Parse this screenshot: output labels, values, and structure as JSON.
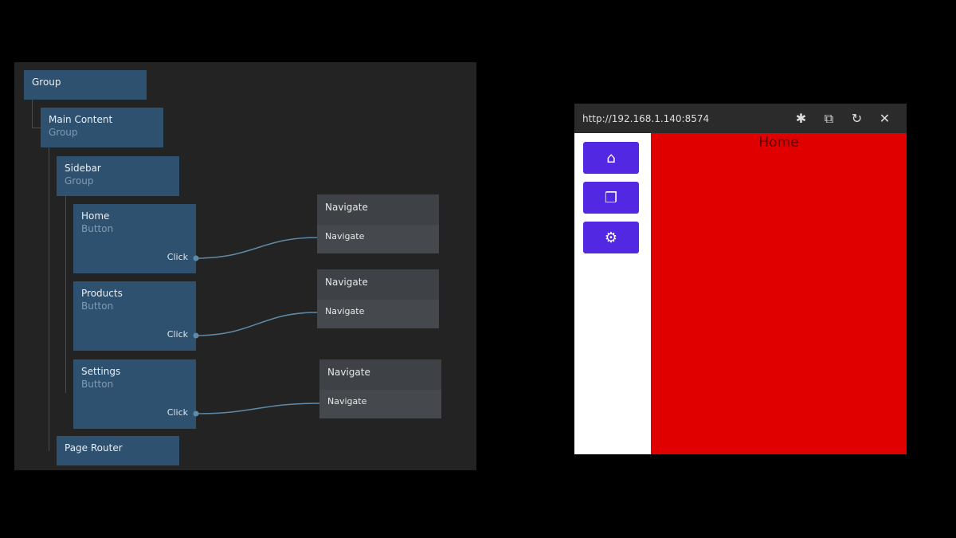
{
  "graph": {
    "nodes": [
      {
        "title": "Group",
        "subtitle": ""
      },
      {
        "title": "Main Content",
        "subtitle": "Group"
      },
      {
        "title": "Sidebar",
        "subtitle": "Group"
      },
      {
        "title": "Home",
        "subtitle": "Button",
        "port": "Click"
      },
      {
        "title": "Products",
        "subtitle": "Button",
        "port": "Click"
      },
      {
        "title": "Settings",
        "subtitle": "Button",
        "port": "Click"
      },
      {
        "title": "Page Router",
        "subtitle": ""
      }
    ],
    "navigate_nodes": [
      {
        "title": "Navigate",
        "port": "Navigate"
      },
      {
        "title": "Navigate",
        "port": "Navigate"
      },
      {
        "title": "Navigate",
        "port": "Navigate"
      }
    ]
  },
  "preview": {
    "url": "http://192.168.1.140:8574",
    "toolbar_icons": [
      "bug-icon",
      "open-external-icon",
      "refresh-icon",
      "close-icon"
    ],
    "sidebar_buttons": [
      "home-icon",
      "copy-icon",
      "gear-icon"
    ],
    "page_title": "Home",
    "colors": {
      "button": "#5328e2",
      "page": "#e00000"
    }
  }
}
